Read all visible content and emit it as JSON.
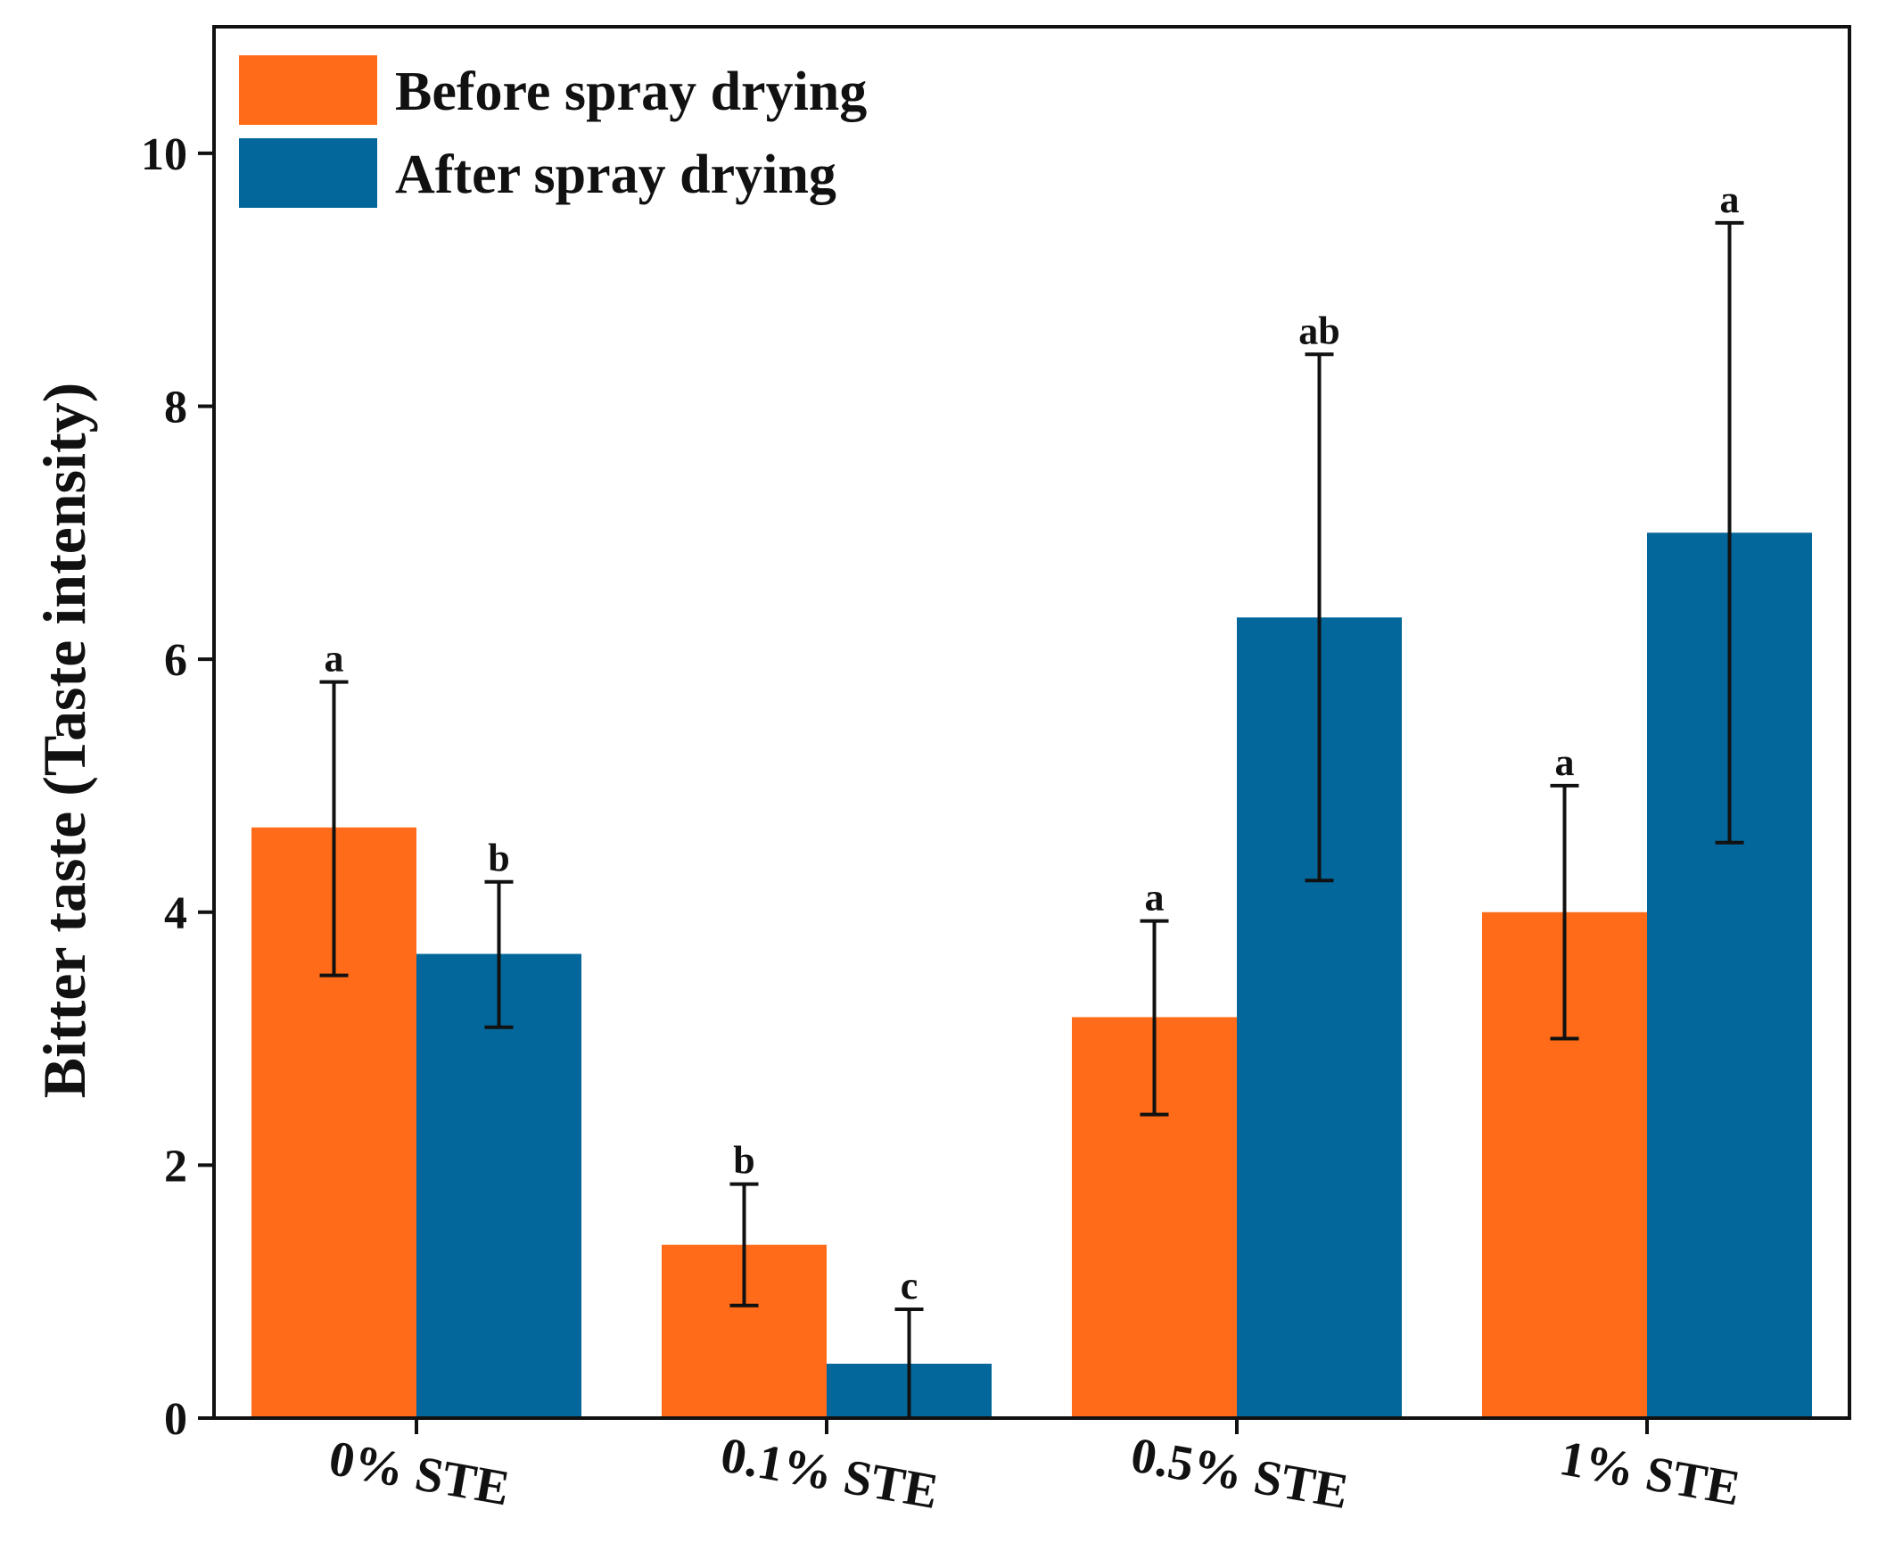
{
  "chart_data": {
    "type": "bar",
    "ylabel": "Bitter taste (Taste intensity)",
    "xlabel": "",
    "ylim": [
      0,
      11
    ],
    "yticks": [
      0,
      2,
      4,
      6,
      8,
      10
    ],
    "ytick_labels": [
      "0",
      "2",
      "4",
      "6",
      "8",
      "10"
    ],
    "categories": [
      "0% STE",
      "0.1% STE",
      "0.5% STE",
      "1% STE"
    ],
    "legend_position": "top-left",
    "grid": false,
    "series": [
      {
        "name": "Before spray drying",
        "color": "#FF6B18",
        "values": [
          4.67,
          1.37,
          3.17,
          4.0
        ],
        "error_low": [
          3.5,
          0.89,
          2.4,
          3.0
        ],
        "error_high": [
          5.82,
          1.85,
          3.93,
          5.0
        ],
        "sig_letters": [
          "a",
          "b",
          "a",
          "a"
        ]
      },
      {
        "name": "After spray drying",
        "color": "#04679B",
        "values": [
          3.67,
          0.43,
          6.33,
          7.0
        ],
        "error_low": [
          3.09,
          0.0,
          4.25,
          4.55
        ],
        "error_high": [
          4.24,
          0.86,
          8.41,
          9.45
        ],
        "sig_letters": [
          "b",
          "c",
          "ab",
          "a"
        ]
      }
    ]
  }
}
